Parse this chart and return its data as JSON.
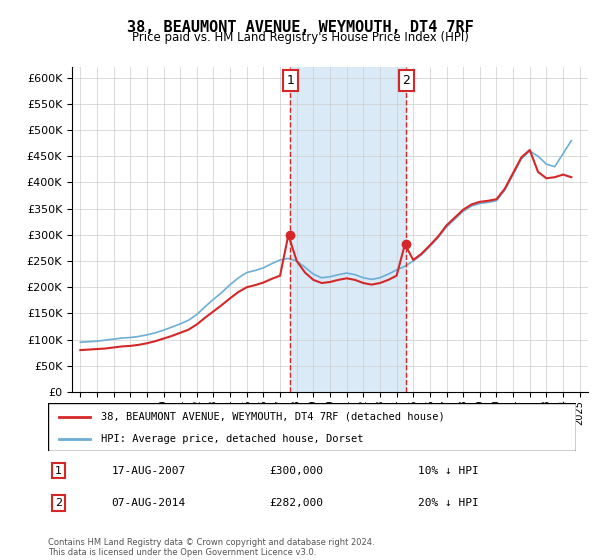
{
  "title": "38, BEAUMONT AVENUE, WEYMOUTH, DT4 7RF",
  "subtitle": "Price paid vs. HM Land Registry's House Price Index (HPI)",
  "hpi_label": "HPI: Average price, detached house, Dorset",
  "property_label": "38, BEAUMONT AVENUE, WEYMOUTH, DT4 7RF (detached house)",
  "footer": "Contains HM Land Registry data © Crown copyright and database right 2024.\nThis data is licensed under the Open Government Licence v3.0.",
  "hpi_color": "#6baed6",
  "property_color": "#d62728",
  "marker_color": "#d62728",
  "vline_color": "#d62728",
  "shade_color": "#dbeaf7",
  "annotation_box_color": "#d62728",
  "ylim": [
    0,
    620000
  ],
  "yticks": [
    0,
    50000,
    100000,
    150000,
    200000,
    250000,
    300000,
    350000,
    400000,
    450000,
    500000,
    550000,
    600000
  ],
  "sale1": {
    "date_num": 2007.625,
    "price": 300000,
    "label": "1",
    "date_str": "17-AUG-2007",
    "pct": "10% ↓ HPI"
  },
  "sale2": {
    "date_num": 2014.583,
    "price": 282000,
    "label": "2",
    "date_str": "07-AUG-2014",
    "pct": "20% ↓ HPI"
  },
  "hpi_x": [
    1995,
    1995.5,
    1996,
    1996.5,
    1997,
    1997.5,
    1998,
    1998.5,
    1999,
    1999.5,
    2000,
    2000.5,
    2001,
    2001.5,
    2002,
    2002.5,
    2003,
    2003.5,
    2004,
    2004.5,
    2005,
    2005.5,
    2006,
    2006.5,
    2007,
    2007.5,
    2008,
    2008.5,
    2009,
    2009.5,
    2010,
    2010.5,
    2011,
    2011.5,
    2012,
    2012.5,
    2013,
    2013.5,
    2014,
    2014.5,
    2015,
    2015.5,
    2016,
    2016.5,
    2017,
    2017.5,
    2018,
    2018.5,
    2019,
    2019.5,
    2020,
    2020.5,
    2021,
    2021.5,
    2022,
    2022.5,
    2023,
    2023.5,
    2024,
    2024.5
  ],
  "hpi_y": [
    95000,
    96000,
    97000,
    99000,
    101000,
    103000,
    104000,
    106000,
    109000,
    113000,
    118000,
    124000,
    130000,
    137000,
    148000,
    163000,
    177000,
    190000,
    205000,
    218000,
    228000,
    232000,
    237000,
    245000,
    252000,
    255000,
    250000,
    238000,
    225000,
    218000,
    220000,
    224000,
    227000,
    224000,
    218000,
    215000,
    218000,
    225000,
    233000,
    240000,
    250000,
    262000,
    278000,
    295000,
    315000,
    330000,
    345000,
    355000,
    360000,
    362000,
    365000,
    385000,
    415000,
    445000,
    460000,
    450000,
    435000,
    430000,
    455000,
    480000
  ],
  "prop_x": [
    1995,
    1995.5,
    1996,
    1996.5,
    1997,
    1997.5,
    1998,
    1998.5,
    1999,
    1999.5,
    2000,
    2000.5,
    2001,
    2001.5,
    2002,
    2002.5,
    2003,
    2003.5,
    2004,
    2004.5,
    2005,
    2005.5,
    2006,
    2006.5,
    2007,
    2007.5,
    2008,
    2008.5,
    2009,
    2009.5,
    2010,
    2010.5,
    2011,
    2011.5,
    2012,
    2012.5,
    2013,
    2013.5,
    2014,
    2014.5,
    2015,
    2015.5,
    2016,
    2016.5,
    2017,
    2017.5,
    2018,
    2018.5,
    2019,
    2019.5,
    2020,
    2020.5,
    2021,
    2021.5,
    2022,
    2022.5,
    2023,
    2023.5,
    2024,
    2024.5
  ],
  "prop_y": [
    80000,
    81000,
    82000,
    83000,
    85000,
    87000,
    88000,
    90000,
    93000,
    97000,
    102000,
    107000,
    113000,
    119000,
    129000,
    142000,
    154000,
    166000,
    179000,
    191000,
    200000,
    204000,
    209000,
    216000,
    222000,
    300000,
    250000,
    228000,
    214000,
    208000,
    210000,
    214000,
    217000,
    214000,
    208000,
    205000,
    208000,
    214000,
    222000,
    282000,
    252000,
    264000,
    280000,
    297000,
    318000,
    333000,
    348000,
    358000,
    363000,
    365000,
    368000,
    388000,
    418000,
    448000,
    462000,
    420000,
    408000,
    410000,
    415000,
    410000
  ]
}
